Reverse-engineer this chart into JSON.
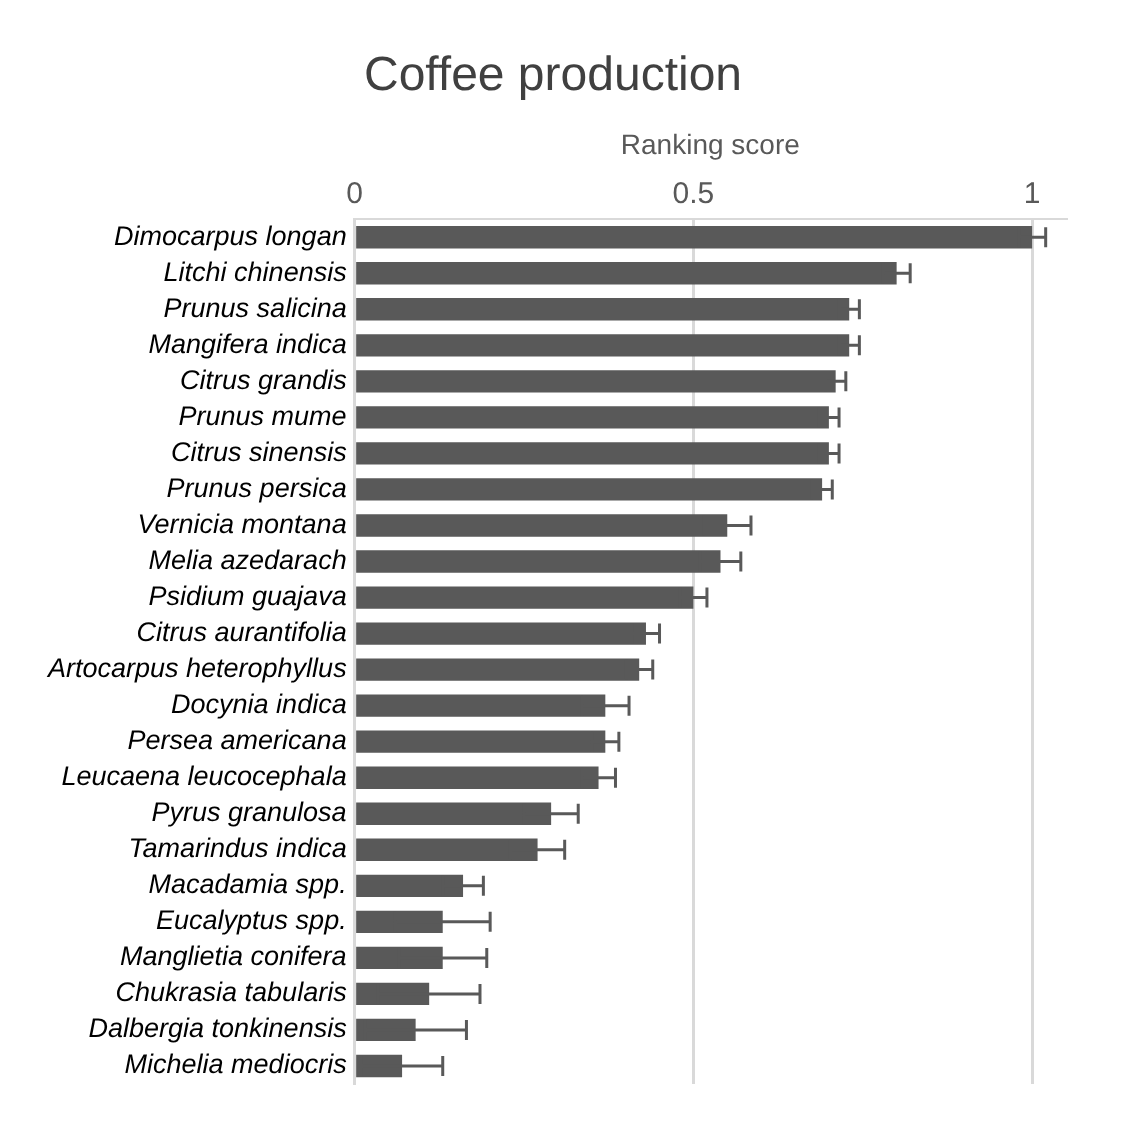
{
  "chart_data": {
    "type": "bar",
    "orientation": "horizontal",
    "title": "Coffee production",
    "xlabel": "Ranking score",
    "categories": [
      "Dimocarpus longan",
      "Litchi chinensis",
      "Prunus salicina",
      "Mangifera indica",
      "Citrus grandis",
      "Prunus mume",
      "Citrus sinensis",
      "Prunus persica",
      "Vernicia montana",
      "Melia azedarach",
      "Psidium guajava",
      "Citrus aurantifolia",
      "Artocarpus heterophyllus",
      "Docynia indica",
      "Persea americana",
      "Leucaena leucocephala",
      "Pyrus granulosa",
      "Tamarindus indica",
      "Macadamia spp.",
      "Eucalyptus spp.",
      "Manglietia conifera",
      "Chukrasia tabularis",
      "Dalbergia tonkinensis",
      "Michelia mediocris"
    ],
    "values": [
      1.0,
      0.8,
      0.73,
      0.73,
      0.71,
      0.7,
      0.7,
      0.69,
      0.55,
      0.54,
      0.5,
      0.43,
      0.42,
      0.37,
      0.37,
      0.36,
      0.29,
      0.27,
      0.16,
      0.13,
      0.13,
      0.11,
      0.09,
      0.07
    ],
    "errors": [
      0.02,
      0.02,
      0.015,
      0.015,
      0.015,
      0.015,
      0.015,
      0.015,
      0.035,
      0.03,
      0.02,
      0.02,
      0.02,
      0.035,
      0.02,
      0.025,
      0.04,
      0.04,
      0.03,
      0.07,
      0.065,
      0.075,
      0.075,
      0.06
    ],
    "color": "#595959",
    "xlim": [
      0,
      1.05
    ],
    "xticks": [
      0,
      0.5,
      1
    ],
    "grid": "x",
    "legend": false
  }
}
